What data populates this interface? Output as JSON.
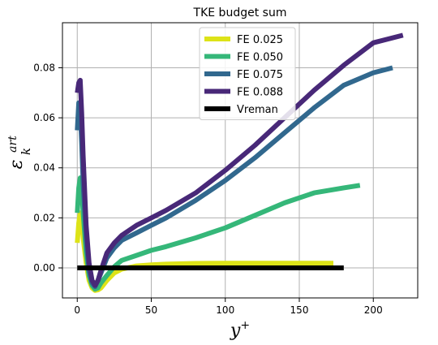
{
  "chart_data": {
    "type": "line",
    "title": "TKE budget sum",
    "xlabel": "y",
    "xlabel_sup": "+",
    "ylabel": "ε",
    "ylabel_sub": "k",
    "ylabel_sup": "art",
    "xlim": [
      -10,
      230
    ],
    "ylim": [
      -0.012,
      0.098
    ],
    "xticks": [
      0,
      50,
      100,
      150,
      200
    ],
    "xtick_labels": [
      "0",
      "50",
      "100",
      "150",
      "200"
    ],
    "yticks": [
      0.0,
      0.02,
      0.04,
      0.06,
      0.08
    ],
    "ytick_labels": [
      "0.00",
      "0.02",
      "0.04",
      "0.06",
      "0.08"
    ],
    "grid": true,
    "legend_position": "top-center",
    "series": [
      {
        "name": "FE 0.025",
        "color": "#dde318",
        "x": [
          0,
          1,
          2,
          3,
          4,
          6,
          8,
          10,
          12,
          14,
          16,
          20,
          25,
          30,
          40,
          50,
          60,
          80,
          100,
          120,
          140,
          160,
          173
        ],
        "y": [
          0.01,
          0.018,
          0.022,
          0.019,
          0.012,
          0.002,
          -0.005,
          -0.008,
          -0.009,
          -0.0088,
          -0.008,
          -0.005,
          -0.002,
          -0.0005,
          0.0008,
          0.0012,
          0.0015,
          0.0018,
          0.0019,
          0.0019,
          0.0019,
          0.0019,
          0.0019
        ]
      },
      {
        "name": "FE 0.050",
        "color": "#35b779",
        "x": [
          0,
          1,
          2,
          3,
          4,
          6,
          8,
          10,
          12,
          14,
          16,
          20,
          25,
          30,
          40,
          50,
          60,
          80,
          100,
          120,
          140,
          160,
          180,
          191
        ],
        "y": [
          0.022,
          0.032,
          0.036,
          0.032,
          0.022,
          0.006,
          -0.003,
          -0.007,
          -0.0085,
          -0.008,
          -0.006,
          -0.003,
          0.0005,
          0.003,
          0.005,
          0.007,
          0.0085,
          0.012,
          0.016,
          0.021,
          0.026,
          0.03,
          0.032,
          0.033
        ]
      },
      {
        "name": "FE 0.075",
        "color": "#31688e",
        "x": [
          0,
          1,
          2,
          3,
          4,
          6,
          8,
          10,
          12,
          14,
          16,
          20,
          25,
          30,
          40,
          50,
          60,
          80,
          100,
          120,
          140,
          160,
          180,
          200,
          213
        ],
        "y": [
          0.055,
          0.066,
          0.064,
          0.05,
          0.034,
          0.012,
          -0.001,
          -0.006,
          -0.0075,
          -0.005,
          -0.002,
          0.004,
          0.008,
          0.011,
          0.014,
          0.017,
          0.02,
          0.027,
          0.035,
          0.044,
          0.054,
          0.064,
          0.073,
          0.078,
          0.08
        ]
      },
      {
        "name": "FE 0.088",
        "color": "#482878",
        "x": [
          0,
          1,
          2,
          3,
          4,
          6,
          8,
          10,
          12,
          14,
          16,
          20,
          25,
          30,
          40,
          50,
          60,
          80,
          100,
          120,
          140,
          160,
          180,
          200,
          220
        ],
        "y": [
          0.07,
          0.074,
          0.075,
          0.062,
          0.045,
          0.017,
          0.002,
          -0.005,
          -0.007,
          -0.005,
          -0.001,
          0.006,
          0.01,
          0.013,
          0.017,
          0.02,
          0.023,
          0.03,
          0.039,
          0.049,
          0.06,
          0.071,
          0.081,
          0.09,
          0.093
        ]
      },
      {
        "name": "Vreman",
        "color": "#000000",
        "x": [
          0,
          180
        ],
        "y": [
          0.0,
          0.0
        ]
      }
    ]
  }
}
